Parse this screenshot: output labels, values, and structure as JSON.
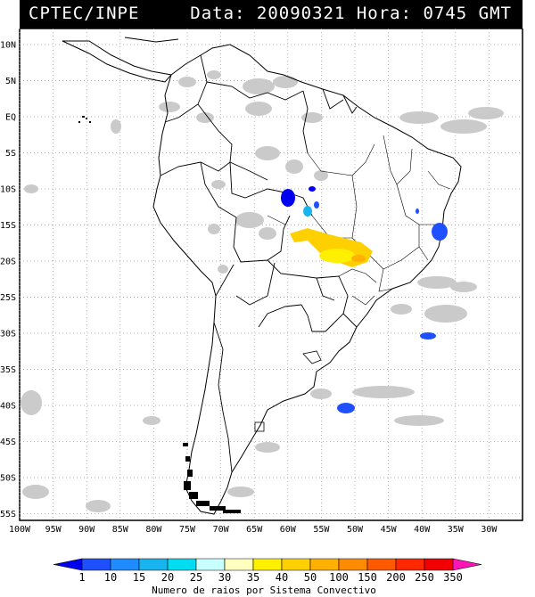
{
  "header": {
    "title": "CPTEC/INPE",
    "datetime": "Data: 20090321 Hora: 0745 GMT"
  },
  "axes": {
    "lat_labels": [
      "10N",
      "5N",
      "EQ",
      "5S",
      "10S",
      "15S",
      "20S",
      "25S",
      "30S",
      "35S",
      "40S",
      "45S",
      "50S",
      "55S"
    ],
    "lon_labels": [
      "100W",
      "95W",
      "90W",
      "85W",
      "80W",
      "75W",
      "70W",
      "65W",
      "60W",
      "55W",
      "50W",
      "45W",
      "40W",
      "35W",
      "30W"
    ]
  },
  "legend": {
    "values": [
      "1",
      "10",
      "15",
      "20",
      "25",
      "30",
      "35",
      "40",
      "50",
      "100",
      "150",
      "200",
      "250",
      "350"
    ],
    "colors": [
      "#0000f0",
      "#1e50ff",
      "#1e8cff",
      "#18b4f0",
      "#00dcf0",
      "#c8ffff",
      "#ffffc0",
      "#fff000",
      "#ffd000",
      "#ffb000",
      "#ff8c00",
      "#ff5a00",
      "#ff2800",
      "#f00000",
      "#ff14b4"
    ],
    "title": "Numero de raios por Sistema Convectivo"
  },
  "map_features": {
    "cloud_color": "#c8c8c8",
    "lightning_systems": [
      {
        "area": "Rondonia/Mato Grosso",
        "color_key": "#1e50ff"
      },
      {
        "area": "Mato Grosso",
        "color_key": "#18b4f0"
      },
      {
        "area": "Mato Grosso do Sul / Goias",
        "color_key": "#ffd000"
      },
      {
        "area": "Bahia coast",
        "color_key": "#1e50ff"
      },
      {
        "area": "South Atlantic 30S",
        "color_key": "#1e50ff"
      },
      {
        "area": "South Atlantic 40S",
        "color_key": "#1e50ff"
      }
    ]
  }
}
